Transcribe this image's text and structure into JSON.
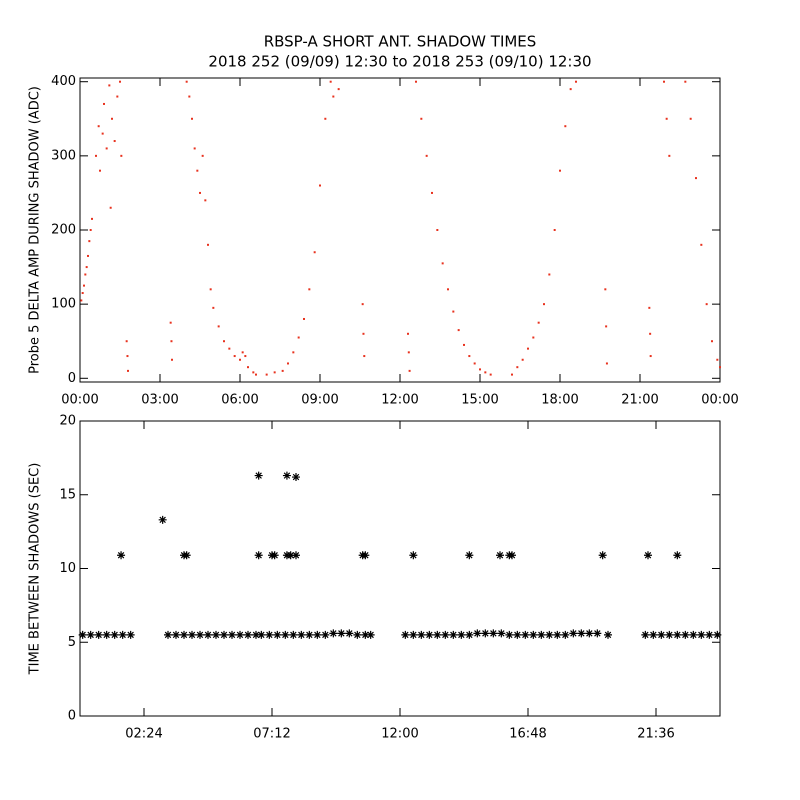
{
  "chart_data": [
    {
      "type": "scatter",
      "title": "RBSP-A SHORT ANT. SHADOW TIMES",
      "subtitle": "2018 252 (09/09) 12:30 to 2018 253 (09/10) 12:30",
      "y_label": "Probe 5 DELTA AMP DURING SHADOW (ADC)",
      "color": "#e8321e",
      "marker": "dot",
      "xlim": [
        0,
        24
      ],
      "xticks": [
        {
          "value": 0,
          "label": "00:00"
        },
        {
          "value": 3,
          "label": "03:00"
        },
        {
          "value": 6,
          "label": "06:00"
        },
        {
          "value": 9,
          "label": "09:00"
        },
        {
          "value": 12,
          "label": "12:00"
        },
        {
          "value": 15,
          "label": "15:00"
        },
        {
          "value": 18,
          "label": "18:00"
        },
        {
          "value": 21,
          "label": "21:00"
        },
        {
          "value": 24,
          "label": "00:00"
        }
      ],
      "ylim": [
        -5,
        405
      ],
      "yticks": [
        0,
        100,
        200,
        300,
        400
      ],
      "x": [
        0.05,
        0.1,
        0.15,
        0.2,
        0.25,
        0.3,
        0.35,
        0.4,
        0.45,
        0.6,
        0.7,
        0.75,
        0.85,
        0.9,
        1.0,
        1.1,
        1.15,
        1.2,
        1.3,
        1.4,
        1.5,
        1.55,
        1.75,
        1.78,
        1.8,
        3.4,
        3.43,
        3.45,
        4.0,
        4.1,
        4.2,
        4.3,
        4.4,
        4.5,
        4.6,
        4.7,
        4.8,
        4.9,
        5.0,
        5.2,
        5.4,
        5.6,
        5.8,
        6.0,
        6.1,
        6.2,
        6.3,
        6.5,
        6.6,
        7.0,
        7.3,
        7.6,
        7.8,
        8.0,
        8.2,
        8.4,
        8.6,
        8.8,
        9.0,
        9.2,
        9.4,
        9.5,
        9.7,
        10.6,
        10.63,
        10.66,
        12.3,
        12.33,
        12.36,
        12.6,
        12.8,
        13.0,
        13.2,
        13.4,
        13.6,
        13.8,
        14.0,
        14.2,
        14.4,
        14.6,
        14.8,
        15.0,
        15.2,
        15.4,
        16.2,
        16.4,
        16.6,
        16.8,
        17.0,
        17.2,
        17.4,
        17.6,
        17.8,
        18.0,
        18.2,
        18.4,
        18.6,
        19.7,
        19.73,
        19.76,
        21.35,
        21.38,
        21.4,
        21.9,
        22.0,
        22.1,
        22.7,
        22.9,
        23.1,
        23.3,
        23.5,
        23.7,
        23.9,
        24.0
      ],
      "values": [
        105,
        115,
        125,
        140,
        150,
        165,
        185,
        200,
        215,
        300,
        340,
        280,
        330,
        370,
        310,
        395,
        230,
        350,
        320,
        380,
        400,
        300,
        50,
        30,
        10,
        75,
        50,
        25,
        400,
        380,
        350,
        310,
        280,
        250,
        300,
        240,
        180,
        120,
        95,
        70,
        50,
        40,
        30,
        25,
        35,
        30,
        15,
        8,
        5,
        5,
        8,
        10,
        20,
        35,
        55,
        80,
        120,
        170,
        260,
        350,
        400,
        380,
        390,
        100,
        60,
        30,
        60,
        35,
        10,
        400,
        350,
        300,
        250,
        200,
        155,
        120,
        90,
        65,
        45,
        30,
        20,
        12,
        8,
        5,
        5,
        15,
        25,
        40,
        55,
        75,
        100,
        140,
        200,
        280,
        340,
        390,
        400,
        120,
        70,
        20,
        95,
        60,
        30,
        400,
        350,
        300,
        400,
        350,
        270,
        180,
        100,
        50,
        25,
        15
      ]
    },
    {
      "type": "scatter",
      "y_label": "TIME BETWEEN SHADOWS (SEC)",
      "color": "#000000",
      "marker": "asterisk",
      "xlim": [
        0,
        24
      ],
      "xticks": [
        {
          "value": 2.4,
          "label": "02:24"
        },
        {
          "value": 7.2,
          "label": "07:12"
        },
        {
          "value": 12,
          "label": "12:00"
        },
        {
          "value": 16.8,
          "label": "16:48"
        },
        {
          "value": 21.6,
          "label": "21:36"
        }
      ],
      "ylim": [
        0,
        20
      ],
      "yticks": [
        0,
        5,
        10,
        15,
        20
      ],
      "x": [
        0.1,
        0.4,
        0.7,
        1.0,
        1.3,
        1.6,
        1.9,
        3.3,
        3.6,
        3.9,
        4.2,
        4.5,
        4.8,
        5.1,
        5.4,
        5.7,
        6.0,
        6.3,
        6.6,
        6.8,
        7.1,
        7.4,
        7.7,
        8.0,
        8.3,
        8.6,
        8.9,
        9.2,
        9.5,
        9.8,
        10.1,
        10.4,
        10.7,
        10.9,
        12.2,
        12.5,
        12.8,
        13.1,
        13.4,
        13.7,
        14.0,
        14.3,
        14.6,
        14.9,
        15.2,
        15.5,
        15.8,
        16.1,
        16.4,
        16.7,
        17.0,
        17.3,
        17.6,
        17.9,
        18.2,
        18.5,
        18.8,
        19.1,
        19.4,
        19.8,
        21.2,
        21.5,
        21.8,
        22.1,
        22.4,
        22.7,
        23.0,
        23.3,
        23.6,
        23.9,
        1.54,
        3.1,
        3.9,
        4.0,
        6.7,
        6.7,
        7.2,
        7.3,
        7.76,
        7.76,
        7.9,
        8.1,
        8.1,
        10.6,
        10.7,
        12.5,
        14.6,
        15.75,
        16.1,
        16.2,
        19.6,
        21.3,
        22.4
      ],
      "values": [
        5.5,
        5.5,
        5.5,
        5.5,
        5.5,
        5.5,
        5.5,
        5.5,
        5.5,
        5.5,
        5.5,
        5.5,
        5.5,
        5.5,
        5.5,
        5.5,
        5.5,
        5.5,
        5.5,
        5.5,
        5.5,
        5.5,
        5.5,
        5.5,
        5.5,
        5.5,
        5.5,
        5.5,
        5.6,
        5.6,
        5.6,
        5.5,
        5.5,
        5.5,
        5.5,
        5.5,
        5.5,
        5.5,
        5.5,
        5.5,
        5.5,
        5.5,
        5.5,
        5.6,
        5.6,
        5.6,
        5.6,
        5.5,
        5.5,
        5.5,
        5.5,
        5.5,
        5.5,
        5.5,
        5.5,
        5.6,
        5.6,
        5.6,
        5.6,
        5.5,
        5.5,
        5.5,
        5.5,
        5.5,
        5.5,
        5.5,
        5.5,
        5.5,
        5.5,
        5.5,
        10.9,
        13.3,
        10.9,
        10.9,
        16.3,
        10.9,
        10.9,
        10.9,
        16.3,
        10.9,
        10.9,
        16.2,
        10.9,
        10.9,
        10.9,
        10.9,
        10.9,
        10.9,
        10.9,
        10.9,
        10.9,
        10.9,
        10.9
      ]
    }
  ]
}
